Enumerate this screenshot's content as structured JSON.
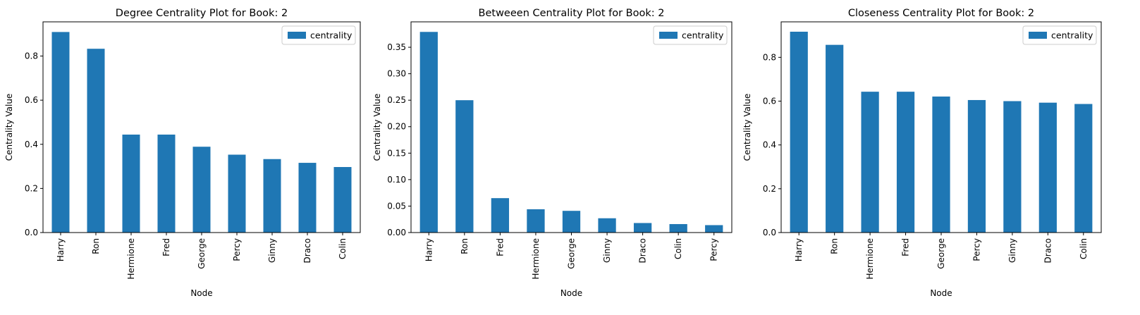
{
  "colors": {
    "bar": "#1f77b4",
    "axis": "#000000",
    "legend_border": "#cccccc"
  },
  "chart_data": [
    {
      "type": "bar",
      "title": "Degree Centrality Plot for Book: 2",
      "xlabel": "Node",
      "ylabel": "Centrality Value",
      "categories": [
        "Harry",
        "Ron",
        "Hermione",
        "Fred",
        "George",
        "Percy",
        "Ginny",
        "Draco",
        "Colin"
      ],
      "series": [
        {
          "name": "centrality",
          "values": [
            0.909,
            0.833,
            0.444,
            0.444,
            0.389,
            0.353,
            0.333,
            0.316,
            0.297
          ]
        }
      ],
      "ylim": [
        0,
        0.955
      ],
      "yticks": [
        0.0,
        0.2,
        0.4,
        0.6,
        0.8
      ],
      "ytick_labels": [
        "0.0",
        "0.2",
        "0.4",
        "0.6",
        "0.8"
      ],
      "legend_position": "upper-right",
      "grid": false
    },
    {
      "type": "bar",
      "title": "Betweeen Centrality Plot for Book: 2",
      "xlabel": "Node",
      "ylabel": "Centrality Value",
      "categories": [
        "Harry",
        "Ron",
        "Fred",
        "Hermione",
        "George",
        "Ginny",
        "Draco",
        "Colin",
        "Percy"
      ],
      "series": [
        {
          "name": "centrality",
          "values": [
            0.379,
            0.25,
            0.065,
            0.044,
            0.041,
            0.027,
            0.018,
            0.016,
            0.014
          ]
        }
      ],
      "ylim": [
        0,
        0.398
      ],
      "yticks": [
        0.0,
        0.05,
        0.1,
        0.15,
        0.2,
        0.25,
        0.3,
        0.35
      ],
      "ytick_labels": [
        "0.00",
        "0.05",
        "0.10",
        "0.15",
        "0.20",
        "0.25",
        "0.30",
        "0.35"
      ],
      "legend_position": "upper-right",
      "grid": false
    },
    {
      "type": "bar",
      "title": "Closeness Centrality Plot for Book: 2",
      "xlabel": "Node",
      "ylabel": "Centrality Value",
      "categories": [
        "Harry",
        "Ron",
        "Hermione",
        "Fred",
        "George",
        "Percy",
        "Ginny",
        "Draco",
        "Colin"
      ],
      "series": [
        {
          "name": "centrality",
          "values": [
            0.917,
            0.857,
            0.643,
            0.643,
            0.621,
            0.605,
            0.6,
            0.593,
            0.587
          ]
        }
      ],
      "ylim": [
        0,
        0.962
      ],
      "yticks": [
        0.0,
        0.2,
        0.4,
        0.6,
        0.8
      ],
      "ytick_labels": [
        "0.0",
        "0.2",
        "0.4",
        "0.6",
        "0.8"
      ],
      "legend_position": "upper-right",
      "grid": false
    }
  ]
}
